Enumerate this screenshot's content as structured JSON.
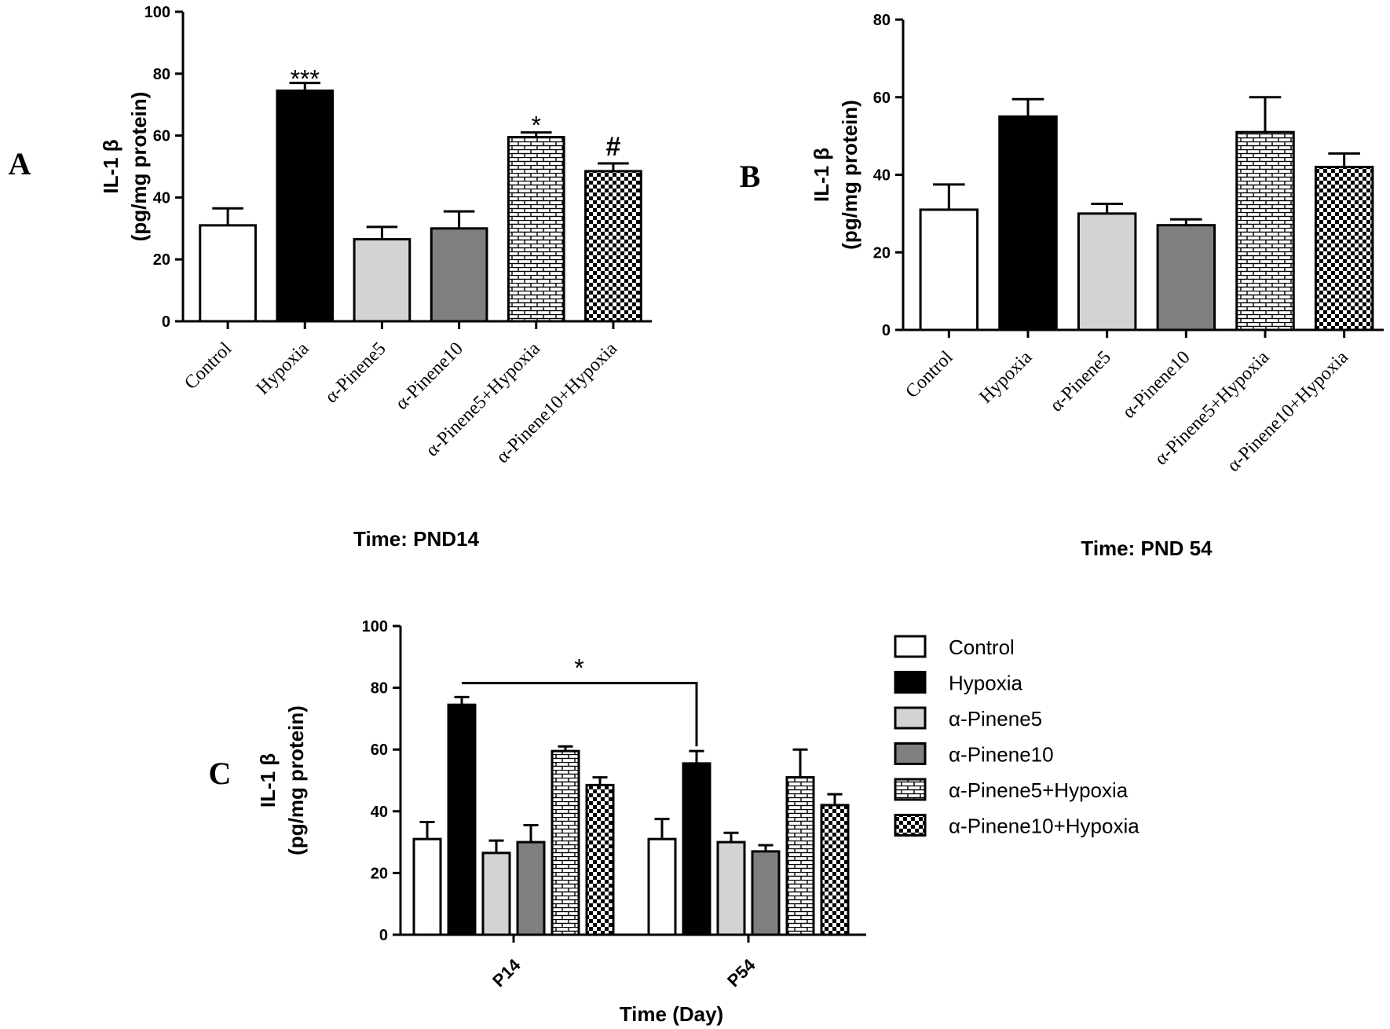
{
  "colors": {
    "control": "#ffffff",
    "hypoxia": "#000000",
    "pinene5": "#d3d3d3",
    "pinene10": "#7f7f7f",
    "pinene5_hypoxia_pattern": "brick",
    "pinene10_hypoxia_pattern": "checker",
    "outline": "#000000"
  },
  "chart_data": [
    {
      "panel_label": "A",
      "type": "bar",
      "ylabel_line1": "IL-1 β",
      "ylabel_line2": "(pg/mg protein)",
      "xlabel": "Time: PND14",
      "ylim": [
        0,
        100
      ],
      "yticks": [
        "0",
        "20",
        "40",
        "60",
        "80",
        "100"
      ],
      "categories": [
        "Control",
        "Hypoxia",
        "α-Pinene5",
        "α-Pinene10",
        "α-Pinene5+Hypoxia",
        "α-Pinene10+Hypoxia"
      ],
      "values": [
        31,
        74.5,
        26.5,
        30,
        59.5,
        48.5
      ],
      "errors": [
        5.5,
        2.5,
        4,
        5.5,
        1.5,
        2.5
      ],
      "annotations": [
        "",
        "***",
        "",
        "",
        "*",
        "#"
      ]
    },
    {
      "panel_label": "B",
      "type": "bar",
      "ylabel_line1": "IL-1 β",
      "ylabel_line2": "(pg/mg protein)",
      "xlabel": "Time: PND 54",
      "ylim": [
        0,
        80
      ],
      "yticks": [
        "0",
        "20",
        "40",
        "60",
        "80"
      ],
      "categories": [
        "Control",
        "Hypoxia",
        "α-Pinene5",
        "α-Pinene10",
        "α-Pinene5+Hypoxia",
        "α-Pinene10+Hypoxia"
      ],
      "values": [
        31,
        55,
        30,
        27,
        51,
        42
      ],
      "errors": [
        6.5,
        4.5,
        2.5,
        1.5,
        9,
        3.5
      ],
      "annotations": [
        "",
        "",
        "",
        "",
        "",
        ""
      ]
    },
    {
      "panel_label": "C",
      "type": "bar",
      "ylabel_line1": "IL-1 β",
      "ylabel_line2": "(pg/mg protein)",
      "xlabel": "Time (Day)",
      "ylim": [
        0,
        100
      ],
      "yticks": [
        "0",
        "20",
        "40",
        "60",
        "80",
        "100"
      ],
      "categories": [
        "P14",
        "P54"
      ],
      "series": [
        {
          "name": "Control",
          "values": [
            31,
            31
          ],
          "errors": [
            5.5,
            6.5
          ]
        },
        {
          "name": "Hypoxia",
          "values": [
            74.5,
            55.5
          ],
          "errors": [
            2.5,
            4
          ]
        },
        {
          "name": "α-Pinene5",
          "values": [
            26.5,
            30
          ],
          "errors": [
            4,
            3
          ]
        },
        {
          "name": "α-Pinene10",
          "values": [
            30,
            27
          ],
          "errors": [
            5.5,
            2
          ]
        },
        {
          "name": "α-Pinene5+Hypoxia",
          "values": [
            59.5,
            51
          ],
          "errors": [
            1.5,
            9
          ]
        },
        {
          "name": "α-Pinene10+Hypoxia",
          "values": [
            48.5,
            42
          ],
          "errors": [
            2.5,
            3.5
          ]
        }
      ],
      "comparison": {
        "from": "P14 Hypoxia",
        "to": "P54 Hypoxia",
        "label": "*"
      },
      "legend_position": "right"
    }
  ]
}
